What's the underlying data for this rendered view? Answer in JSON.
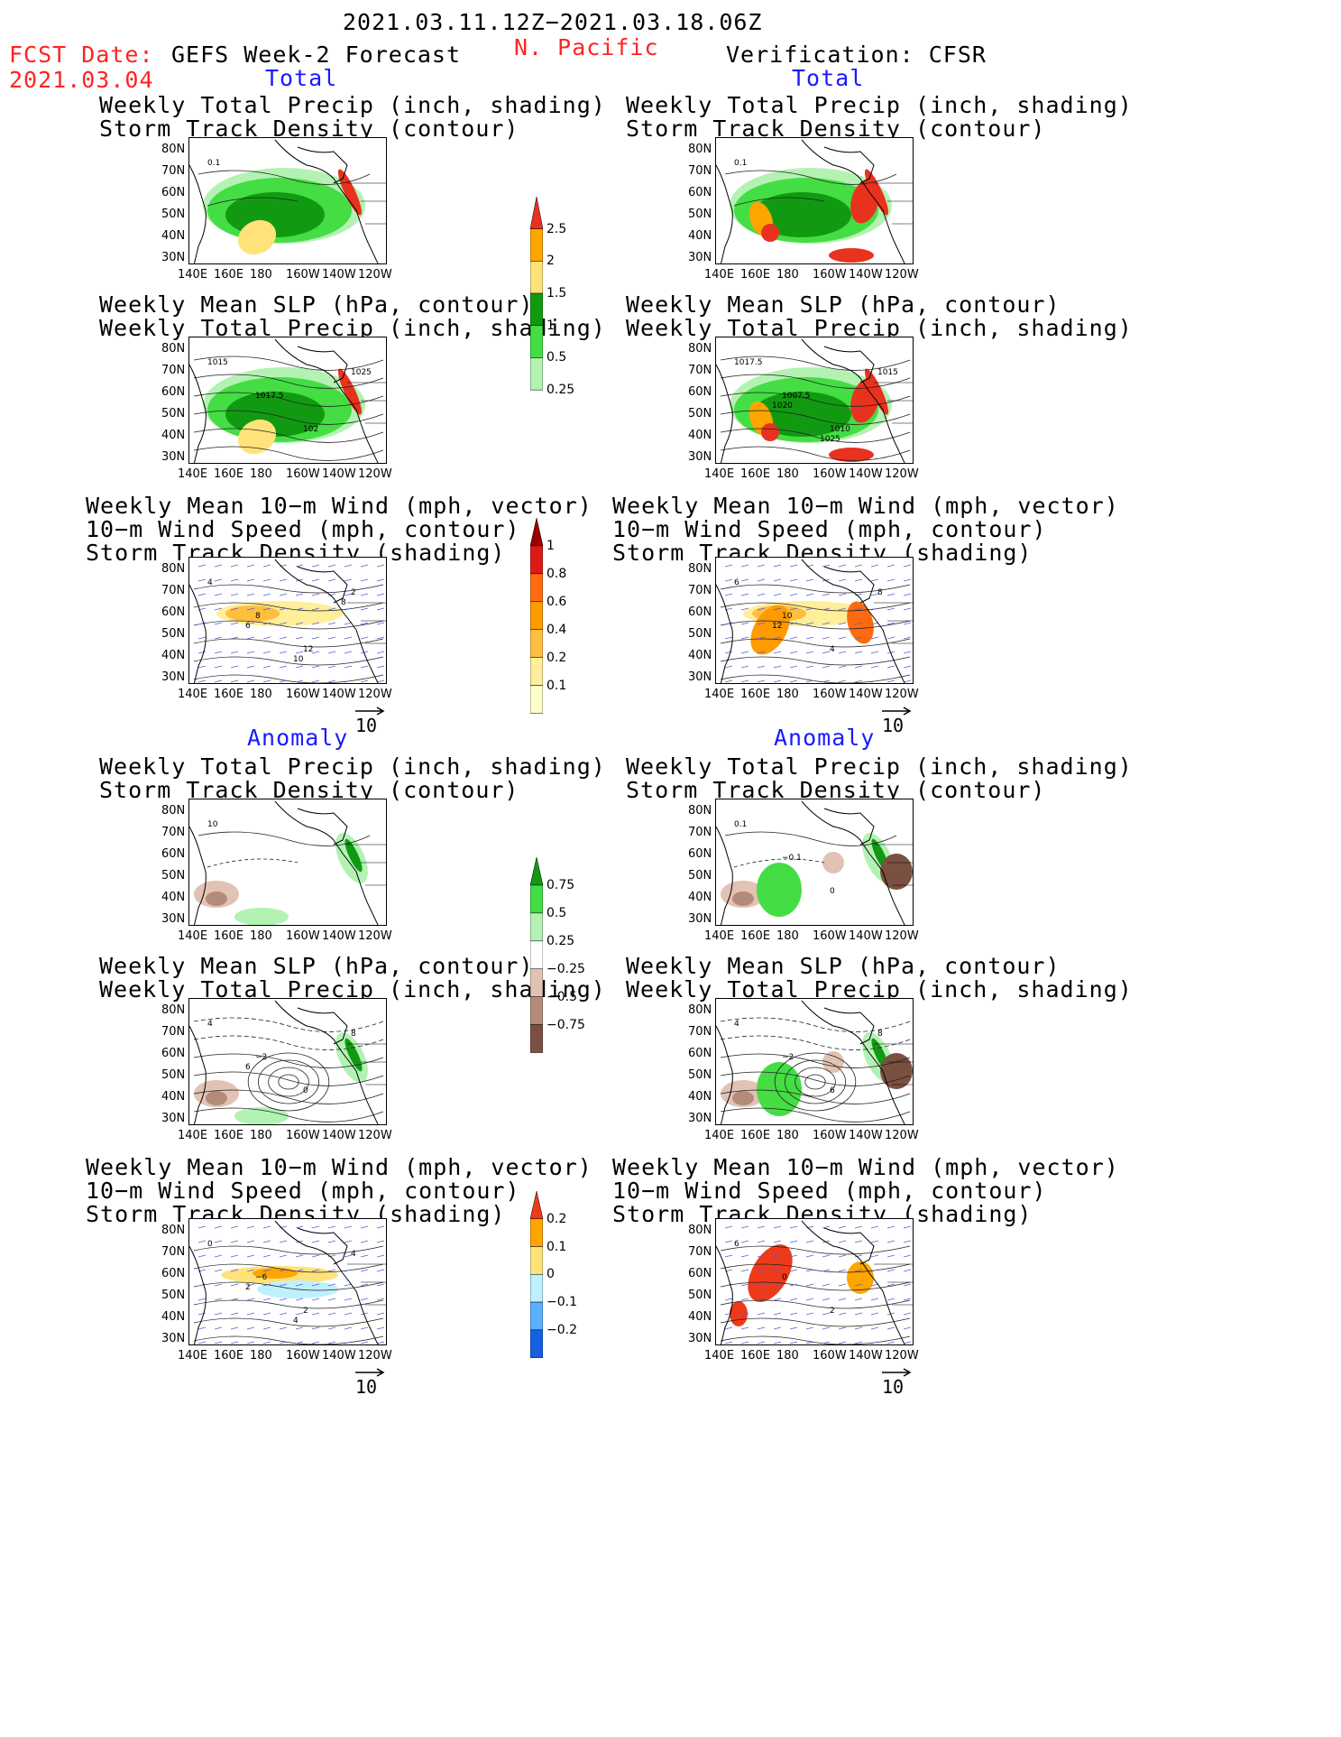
{
  "header": {
    "date_range": "2021.03.11.12Z−2021.03.18.06Z",
    "region": "N. Pacific",
    "fcst_label": "FCST Date:",
    "fcst_date": "2021.03.04",
    "left_title": "GEFS Week-2 Forecast",
    "right_title": "Verification: CFSR",
    "total_label": "Total",
    "anomaly_label": "Anomaly"
  },
  "titles": {
    "precip_track": [
      "Weekly Total Precip (inch, shading)",
      "Storm Track Density (contour)"
    ],
    "slp_precip": [
      "Weekly Mean SLP (hPa, contour)",
      "Weekly Total Precip (inch, shading)"
    ],
    "wind_track": [
      "Weekly Mean 10−m Wind (mph, vector)",
      "10−m Wind Speed (mph, contour)",
      "Storm Track Density (shading)"
    ]
  },
  "axes": {
    "lat_ticks": [
      "80N",
      "70N",
      "60N",
      "50N",
      "40N",
      "30N"
    ],
    "lon_ticks": [
      "140E",
      "160E",
      "180",
      "160W",
      "140W",
      "120W"
    ]
  },
  "vector_ref": "10",
  "colorbars": {
    "precip_total": {
      "labels": [
        "2.5",
        "2",
        "1.5",
        "1",
        "0.5",
        "0.25"
      ],
      "colors": [
        "#e8321e",
        "#ffa500",
        "#ffe27a",
        "#119a11",
        "#44dd44",
        "#b3f2b3"
      ]
    },
    "track_total": {
      "labels": [
        "1",
        "0.8",
        "0.6",
        "0.4",
        "0.2",
        "0.1"
      ],
      "colors": [
        "#9a0000",
        "#dd1a1a",
        "#ff6a10",
        "#ff9a00",
        "#ffbe40",
        "#ffee9a",
        "#ffffc8"
      ]
    },
    "precip_anom": {
      "labels": [
        "0.75",
        "0.5",
        "0.25",
        "−0.25",
        "−0.5",
        "−0.75"
      ],
      "colors": [
        "#119a11",
        "#44dd44",
        "#b3f2b3",
        "#ffffff",
        "#e2c2b4",
        "#b48a78",
        "#7a5040"
      ]
    },
    "track_anom": {
      "labels": [
        "0.2",
        "0.1",
        "0",
        "−0.1",
        "−0.2"
      ],
      "colors": [
        "#ee3a1a",
        "#ffa500",
        "#ffe27a",
        "#bff0ff",
        "#5ab0ff",
        "#1560e0"
      ]
    }
  },
  "contour_labels": {
    "L1": [
      "0.1"
    ],
    "R1": [
      "0.1"
    ],
    "L2": [
      "1015",
      "1017.5",
      "102",
      "1025"
    ],
    "R2": [
      "1017.5",
      "1007.5",
      "1010",
      "1015",
      "1020",
      "1025"
    ],
    "L3": [
      "4",
      "8",
      "12",
      "2",
      "6",
      "10",
      "8"
    ],
    "R3": [
      "6",
      "10",
      "4",
      "8",
      "12"
    ],
    "L4": [
      "10"
    ],
    "R4": [
      "0.1",
      "−0.1",
      "0"
    ],
    "L5": [
      "4",
      "−2",
      "0",
      "8",
      "6"
    ],
    "R5": [
      "4",
      "−2",
      "6",
      "8"
    ],
    "L6": [
      "0",
      "−6",
      "2",
      "4",
      "2",
      "4"
    ],
    "R6": [
      "6",
      "0",
      "2"
    ]
  }
}
